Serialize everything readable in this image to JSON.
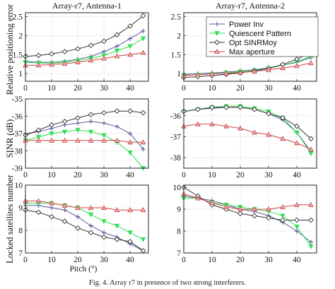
{
  "figure": {
    "caption": "Fig. 4. Array r7 in presence of two strong interferers."
  },
  "legend": {
    "entries": [
      {
        "label": "Power Inv",
        "color": "#5a5a9a",
        "marker": "plus"
      },
      {
        "label": "Quiescent Pattern",
        "color": "#33dd55",
        "marker": "triangle-down"
      },
      {
        "label": "Opt SINRMoy",
        "color": "#333333",
        "marker": "diamond"
      },
      {
        "label": "Max aperture",
        "color": "#cc4444",
        "marker": "triangle-up"
      }
    ]
  },
  "chart_data": [
    {
      "type": "line",
      "title": "Array-r7, Antenna-1",
      "xlabel": "",
      "ylabel": "Relative positioning error",
      "xlim": [
        0,
        47
      ],
      "ylim": [
        0.8,
        2.6
      ],
      "xticks": [
        0,
        10,
        20,
        30,
        40
      ],
      "yticks": [
        1,
        1.5,
        2,
        2.5
      ],
      "series": [
        {
          "name": "Power Inv",
          "x": [
            0,
            5,
            10,
            15,
            20,
            25,
            30,
            35,
            40,
            45
          ],
          "y": [
            1.32,
            1.3,
            1.3,
            1.32,
            1.38,
            1.45,
            1.58,
            1.72,
            1.92,
            2.12
          ]
        },
        {
          "name": "Quiescent Pattern",
          "x": [
            0,
            5,
            10,
            15,
            20,
            25,
            30,
            35,
            40,
            45
          ],
          "y": [
            1.3,
            1.28,
            1.27,
            1.3,
            1.34,
            1.4,
            1.48,
            1.6,
            1.72,
            1.92
          ]
        },
        {
          "name": "Opt SINRMoy",
          "x": [
            0,
            5,
            10,
            15,
            20,
            25,
            30,
            35,
            40,
            45
          ],
          "y": [
            1.45,
            1.48,
            1.52,
            1.58,
            1.65,
            1.74,
            1.85,
            2.02,
            2.25,
            2.52
          ]
        },
        {
          "name": "Max aperture",
          "x": [
            0,
            5,
            10,
            15,
            20,
            25,
            30,
            35,
            40,
            45
          ],
          "y": [
            1.22,
            1.22,
            1.24,
            1.26,
            1.3,
            1.35,
            1.4,
            1.46,
            1.5,
            1.55
          ]
        }
      ]
    },
    {
      "type": "line",
      "title": "Array-r7, Antenna-2",
      "xlabel": "",
      "ylabel": "",
      "xlim": [
        0,
        47
      ],
      "ylim": [
        0.8,
        2.6
      ],
      "xticks": [
        0,
        10,
        20,
        30,
        40
      ],
      "yticks": [
        1,
        1.5,
        2,
        2.5
      ],
      "series": [
        {
          "name": "Power Inv",
          "x": [
            0,
            5,
            10,
            15,
            20,
            25,
            30,
            35,
            40,
            45
          ],
          "y": [
            0.98,
            1.0,
            1.02,
            1.04,
            1.07,
            1.1,
            1.15,
            1.22,
            1.3,
            1.42
          ]
        },
        {
          "name": "Quiescent Pattern",
          "x": [
            0,
            5,
            10,
            15,
            20,
            25,
            30,
            35,
            40,
            45
          ],
          "y": [
            0.96,
            0.97,
            0.99,
            1.02,
            1.05,
            1.08,
            1.14,
            1.22,
            1.32,
            1.45
          ]
        },
        {
          "name": "Opt SINRMoy",
          "x": [
            0,
            5,
            10,
            15,
            20,
            25,
            30,
            35,
            40,
            45
          ],
          "y": [
            0.9,
            0.92,
            0.95,
            0.98,
            1.02,
            1.07,
            1.14,
            1.24,
            1.38,
            1.55
          ]
        },
        {
          "name": "Max aperture",
          "x": [
            0,
            5,
            10,
            15,
            20,
            25,
            30,
            35,
            40,
            45
          ],
          "y": [
            0.95,
            0.97,
            0.99,
            1.01,
            1.03,
            1.06,
            1.1,
            1.15,
            1.2,
            1.28
          ]
        }
      ]
    },
    {
      "type": "line",
      "title": "",
      "xlabel": "",
      "ylabel": "SINR (dB)",
      "xlim": [
        0,
        47
      ],
      "ylim": [
        -39,
        -35
      ],
      "xticks": [
        0,
        10,
        20,
        30,
        40
      ],
      "yticks": [
        -35,
        -36,
        -37,
        -38,
        -39
      ],
      "series": [
        {
          "name": "Power Inv",
          "x": [
            0,
            5,
            10,
            15,
            20,
            25,
            30,
            35,
            40,
            45
          ],
          "y": [
            -37.0,
            -36.9,
            -36.7,
            -36.5,
            -36.4,
            -36.3,
            -36.4,
            -36.6,
            -37.0,
            -37.9
          ]
        },
        {
          "name": "Quiescent Pattern",
          "x": [
            0,
            5,
            10,
            15,
            20,
            25,
            30,
            35,
            40,
            45
          ],
          "y": [
            -37.4,
            -37.2,
            -37.0,
            -36.9,
            -36.8,
            -36.9,
            -37.1,
            -37.5,
            -38.1,
            -39.0
          ]
        },
        {
          "name": "Opt SINRMoy",
          "x": [
            0,
            5,
            10,
            15,
            20,
            25,
            30,
            35,
            40,
            45
          ],
          "y": [
            -37.1,
            -36.8,
            -36.5,
            -36.3,
            -36.1,
            -35.9,
            -35.8,
            -35.7,
            -35.7,
            -35.8
          ]
        },
        {
          "name": "Max aperture",
          "x": [
            0,
            5,
            10,
            15,
            20,
            25,
            30,
            35,
            40,
            45
          ],
          "y": [
            -37.4,
            -37.4,
            -37.4,
            -37.4,
            -37.4,
            -37.4,
            -37.4,
            -37.4,
            -37.5,
            -37.5
          ]
        }
      ]
    },
    {
      "type": "line",
      "title": "",
      "xlabel": "",
      "ylabel": "",
      "xlim": [
        0,
        47
      ],
      "ylim": [
        -38.5,
        -35.2
      ],
      "xticks": [
        0,
        10,
        20,
        30,
        40
      ],
      "yticks": [
        -36,
        -37,
        -38
      ],
      "series": [
        {
          "name": "Power Inv",
          "x": [
            0,
            5,
            10,
            15,
            20,
            25,
            30,
            35,
            40,
            45
          ],
          "y": [
            -35.8,
            -35.7,
            -35.65,
            -35.6,
            -35.6,
            -35.7,
            -35.9,
            -36.2,
            -36.8,
            -37.7
          ]
        },
        {
          "name": "Quiescent Pattern",
          "x": [
            0,
            5,
            10,
            15,
            20,
            25,
            30,
            35,
            40,
            45
          ],
          "y": [
            -35.8,
            -35.7,
            -35.6,
            -35.55,
            -35.55,
            -35.65,
            -35.8,
            -36.1,
            -36.8,
            -37.8
          ]
        },
        {
          "name": "Opt SINRMoy",
          "x": [
            0,
            5,
            10,
            15,
            20,
            25,
            30,
            35,
            40,
            45
          ],
          "y": [
            -35.8,
            -35.7,
            -35.6,
            -35.6,
            -35.6,
            -35.7,
            -35.9,
            -36.1,
            -36.5,
            -37.1
          ]
        },
        {
          "name": "Max aperture",
          "x": [
            0,
            5,
            10,
            15,
            20,
            25,
            30,
            35,
            40,
            45
          ],
          "y": [
            -36.5,
            -36.4,
            -36.4,
            -36.5,
            -36.6,
            -36.8,
            -36.9,
            -37.1,
            -37.3,
            -37.6
          ]
        }
      ]
    },
    {
      "type": "line",
      "title": "",
      "xlabel": "Pitch (°)",
      "ylabel": "Locked satellites number",
      "xlim": [
        0,
        47
      ],
      "ylim": [
        7,
        10
      ],
      "xticks": [
        0,
        10,
        20,
        30,
        40
      ],
      "yticks": [
        7,
        8,
        9,
        10
      ],
      "series": [
        {
          "name": "Power Inv",
          "x": [
            0,
            5,
            10,
            15,
            20,
            25,
            30,
            35,
            40,
            45
          ],
          "y": [
            9.1,
            9.1,
            9.0,
            8.9,
            8.6,
            8.2,
            7.9,
            7.7,
            7.4,
            7.1
          ]
        },
        {
          "name": "Quiescent Pattern",
          "x": [
            0,
            5,
            10,
            15,
            20,
            25,
            30,
            35,
            40,
            45
          ],
          "y": [
            9.2,
            9.2,
            9.2,
            9.1,
            9.0,
            8.7,
            8.4,
            8.2,
            7.9,
            7.6
          ]
        },
        {
          "name": "Opt SINRMoy",
          "x": [
            0,
            5,
            10,
            15,
            20,
            25,
            30,
            35,
            40,
            45
          ],
          "y": [
            8.9,
            8.8,
            8.6,
            8.4,
            8.1,
            7.9,
            7.7,
            7.6,
            7.5,
            7.1
          ]
        },
        {
          "name": "Max aperture",
          "x": [
            0,
            5,
            10,
            15,
            20,
            25,
            30,
            35,
            40,
            45
          ],
          "y": [
            9.3,
            9.3,
            9.2,
            9.1,
            9.0,
            9.0,
            9.0,
            8.9,
            8.9,
            8.9
          ]
        }
      ]
    },
    {
      "type": "line",
      "title": "",
      "xlabel": "",
      "ylabel": "",
      "xlim": [
        0,
        47
      ],
      "ylim": [
        7,
        10.1
      ],
      "xticks": [
        0,
        10,
        20,
        30,
        40
      ],
      "yticks": [
        7,
        8,
        9,
        10
      ],
      "series": [
        {
          "name": "Power Inv",
          "x": [
            0,
            5,
            10,
            15,
            20,
            25,
            30,
            35,
            40,
            45
          ],
          "y": [
            9.6,
            9.5,
            9.4,
            9.2,
            9.0,
            8.9,
            8.7,
            8.4,
            8.0,
            7.5
          ]
        },
        {
          "name": "Quiescent Pattern",
          "x": [
            0,
            5,
            10,
            15,
            20,
            25,
            30,
            35,
            40,
            45
          ],
          "y": [
            9.5,
            9.5,
            9.3,
            9.2,
            9.1,
            9.0,
            8.9,
            8.7,
            8.2,
            7.3
          ]
        },
        {
          "name": "Opt SINRMoy",
          "x": [
            0,
            5,
            10,
            15,
            20,
            25,
            30,
            35,
            40,
            45
          ],
          "y": [
            10.0,
            9.6,
            9.2,
            9.0,
            8.8,
            8.7,
            8.6,
            8.5,
            8.5,
            8.5
          ]
        },
        {
          "name": "Max aperture",
          "x": [
            0,
            5,
            10,
            15,
            20,
            25,
            30,
            35,
            40,
            45
          ],
          "y": [
            9.7,
            9.5,
            9.3,
            9.1,
            9.0,
            9.0,
            9.0,
            9.1,
            9.2,
            9.2
          ]
        }
      ]
    }
  ]
}
